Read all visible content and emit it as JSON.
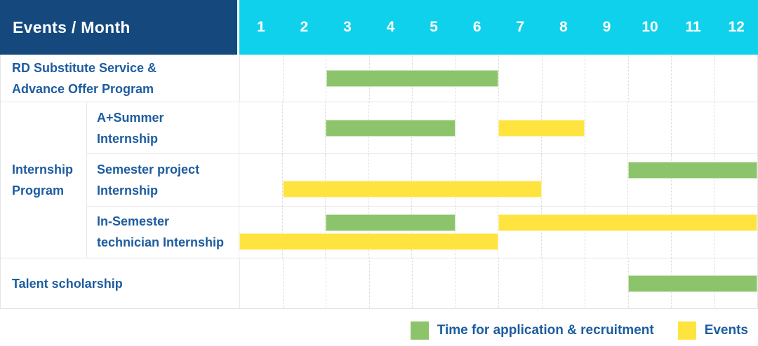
{
  "header": {
    "title": "Events / Month",
    "months": [
      "1",
      "2",
      "3",
      "4",
      "5",
      "6",
      "7",
      "8",
      "9",
      "10",
      "11",
      "12"
    ]
  },
  "group": {
    "label": "Internship Program",
    "label_lines": [
      "Internship",
      "Program"
    ]
  },
  "legend": {
    "items": [
      {
        "series": "application",
        "label": "Time for application & recruitment"
      },
      {
        "series": "events",
        "label": "Events"
      }
    ]
  },
  "colors": {
    "header_navy": "#15497E",
    "header_cyan": "#10D1EC",
    "label_blue": "#1D5C9F",
    "application_green": "#8CC46B",
    "events_yellow": "#FFE440"
  },
  "chart_data": {
    "type": "table",
    "subtype": "gantt",
    "title": "Events / Month",
    "x_axis": {
      "label": "Month",
      "ticks": [
        "1",
        "2",
        "3",
        "4",
        "5",
        "6",
        "7",
        "8",
        "9",
        "10",
        "11",
        "12"
      ],
      "range": [
        1,
        12
      ]
    },
    "grid": true,
    "legend_position": "bottom-right",
    "series_legend": [
      "Time for application & recruitment",
      "Events"
    ],
    "rows": [
      {
        "group": "",
        "label": "RD Substitute Service & Advance Offer Program",
        "label_lines": [
          "RD Substitute Service &",
          "Advance Offer Program"
        ],
        "bars": [
          {
            "series": "application",
            "start_month": 3,
            "end_month": 6,
            "line": 0
          }
        ]
      },
      {
        "group": "Internship Program",
        "label": "A+Summer Internship",
        "label_lines": [
          "A+Summer",
          "Internship"
        ],
        "bars": [
          {
            "series": "application",
            "start_month": 3,
            "end_month": 5,
            "line": 0
          },
          {
            "series": "events",
            "start_month": 7,
            "end_month": 8,
            "line": 0
          }
        ]
      },
      {
        "group": "Internship Program",
        "label": "Semester project Internship",
        "label_lines": [
          "Semester project",
          "Internship"
        ],
        "bars": [
          {
            "series": "application",
            "start_month": 10,
            "end_month": 12,
            "line": 0
          },
          {
            "series": "events",
            "start_month": 2,
            "end_month": 7,
            "line": 1
          }
        ]
      },
      {
        "group": "Internship Program",
        "label": "In-Semester technician Internship",
        "label_lines": [
          "In-Semester",
          "technician Internship"
        ],
        "bars": [
          {
            "series": "application",
            "start_month": 3,
            "end_month": 5,
            "line": 0
          },
          {
            "series": "events",
            "start_month": 7,
            "end_month": 12,
            "line": 0
          },
          {
            "series": "events",
            "start_month": 1,
            "end_month": 6,
            "line": 1
          }
        ]
      },
      {
        "group": "",
        "label": "Talent scholarship",
        "label_lines": [
          "Talent scholarship"
        ],
        "bars": [
          {
            "series": "application",
            "start_month": 10,
            "end_month": 12,
            "line": 0
          }
        ]
      }
    ]
  }
}
